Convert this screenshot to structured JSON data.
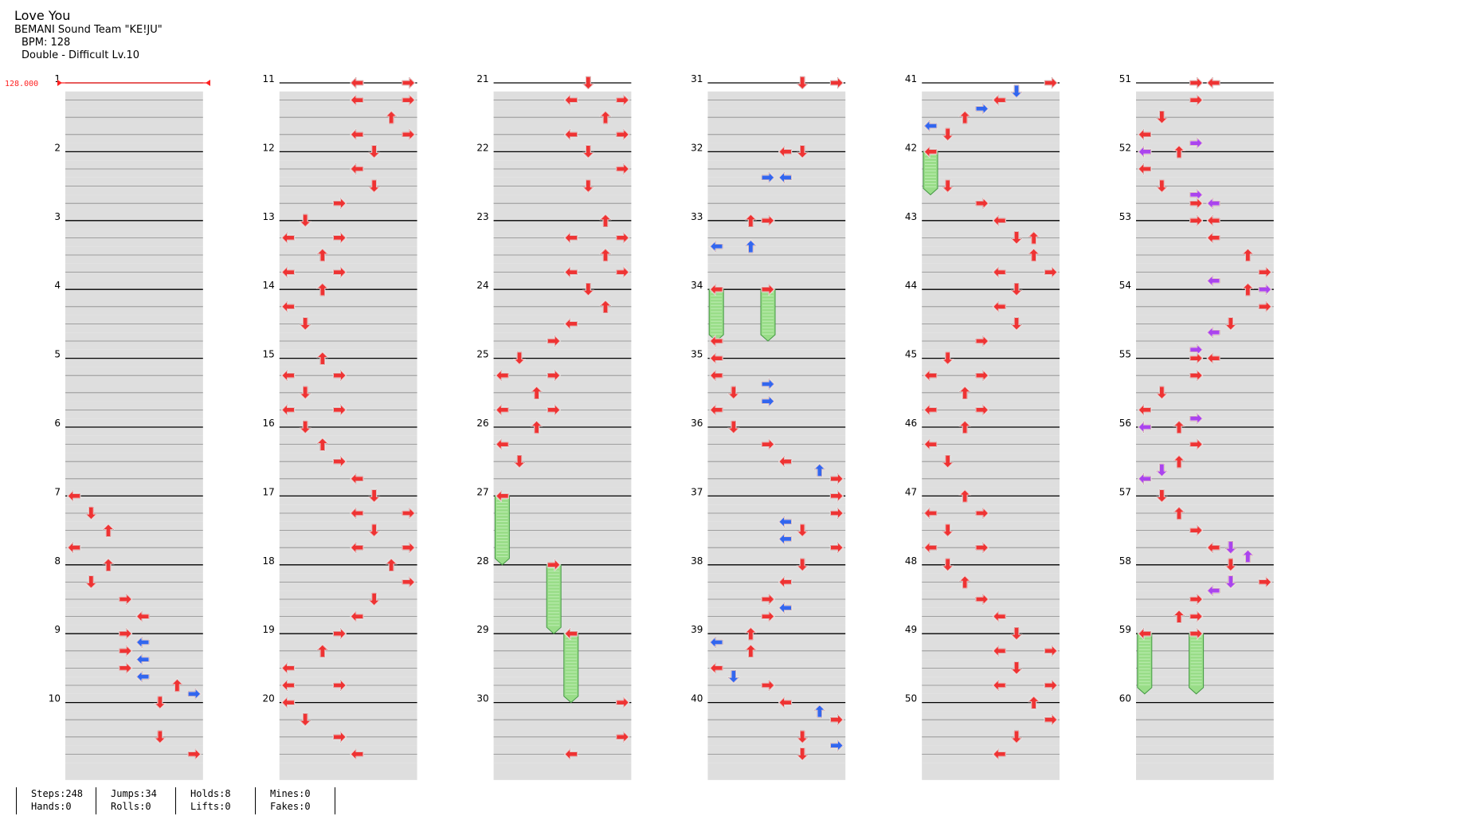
{
  "song": {
    "title": "Love You",
    "artist": "BEMANI Sound Team \"KE!JU\"",
    "bpm_label": "BPM: 128",
    "difficulty_label": "Double - Difficult  Lv.10"
  },
  "bpm_marker": "128.000",
  "measure_numbers": [
    "1",
    "2",
    "3",
    "4",
    "5",
    "6",
    "7",
    "8",
    "9",
    "10",
    "11",
    "12",
    "13",
    "14",
    "15",
    "16",
    "17",
    "18",
    "19",
    "20",
    "21",
    "22",
    "23",
    "24",
    "25",
    "26",
    "27",
    "28",
    "29",
    "30",
    "31",
    "32",
    "33",
    "34",
    "35",
    "36",
    "37",
    "38",
    "39",
    "40",
    "41",
    "42",
    "43",
    "44",
    "45",
    "46",
    "47",
    "48",
    "49",
    "50",
    "51",
    "52",
    "53",
    "54",
    "55",
    "56",
    "57",
    "58",
    "59",
    "60"
  ],
  "colors": {
    "quarter": "#ee3333",
    "eighth": "#3366ee",
    "sixteenth": "#aa44ee",
    "hold_fill": "#99dd88",
    "band": "#dedede",
    "bpm_line": "#ff2222"
  },
  "notes": [
    {
      "m": 7,
      "b": 0,
      "l": 0,
      "c": "r"
    },
    {
      "m": 7,
      "b": 1,
      "l": 1,
      "c": "r"
    },
    {
      "m": 7,
      "b": 2,
      "l": 2,
      "c": "r"
    },
    {
      "m": 7,
      "b": 3,
      "l": 0,
      "c": "r"
    },
    {
      "m": 8,
      "b": 0,
      "l": 2,
      "c": "r"
    },
    {
      "m": 8,
      "b": 1,
      "l": 1,
      "c": "r"
    },
    {
      "m": 8,
      "b": 2,
      "l": 3,
      "c": "r"
    },
    {
      "m": 8,
      "b": 3,
      "l": 4,
      "c": "r"
    },
    {
      "m": 9,
      "b": 0,
      "l": 3,
      "c": "r"
    },
    {
      "m": 9,
      "b": 0.5,
      "l": 4,
      "c": "b"
    },
    {
      "m": 9,
      "b": 1,
      "l": 3,
      "c": "r"
    },
    {
      "m": 9,
      "b": 1.5,
      "l": 4,
      "c": "b"
    },
    {
      "m": 9,
      "b": 2,
      "l": 3,
      "c": "r"
    },
    {
      "m": 9,
      "b": 2.5,
      "l": 4,
      "c": "b"
    },
    {
      "m": 9,
      "b": 3,
      "l": 6,
      "c": "r"
    },
    {
      "m": 9,
      "b": 3.5,
      "l": 7,
      "c": "b"
    },
    {
      "m": 10,
      "b": 0,
      "l": 5,
      "c": "r"
    },
    {
      "m": 10,
      "b": 2,
      "l": 5,
      "c": "r"
    },
    {
      "m": 10,
      "b": 3,
      "l": 7,
      "c": "r"
    },
    {
      "m": 11,
      "b": 0,
      "l": 4,
      "c": "r"
    },
    {
      "m": 11,
      "b": 0,
      "l": 7,
      "c": "r"
    },
    {
      "m": 11,
      "b": 1,
      "l": 4,
      "c": "r"
    },
    {
      "m": 11,
      "b": 1,
      "l": 7,
      "c": "r"
    },
    {
      "m": 11,
      "b": 2,
      "l": 6,
      "c": "r"
    },
    {
      "m": 11,
      "b": 3,
      "l": 4,
      "c": "r"
    },
    {
      "m": 11,
      "b": 3,
      "l": 7,
      "c": "r"
    },
    {
      "m": 12,
      "b": 0,
      "l": 5,
      "c": "r"
    },
    {
      "m": 12,
      "b": 1,
      "l": 4,
      "c": "r"
    },
    {
      "m": 12,
      "b": 2,
      "l": 5,
      "c": "r"
    },
    {
      "m": 12,
      "b": 3,
      "l": 3,
      "c": "r"
    },
    {
      "m": 13,
      "b": 0,
      "l": 1,
      "c": "r"
    },
    {
      "m": 13,
      "b": 1,
      "l": 0,
      "c": "r"
    },
    {
      "m": 13,
      "b": 1,
      "l": 3,
      "c": "r"
    },
    {
      "m": 13,
      "b": 2,
      "l": 2,
      "c": "r"
    },
    {
      "m": 13,
      "b": 3,
      "l": 0,
      "c": "r"
    },
    {
      "m": 13,
      "b": 3,
      "l": 3,
      "c": "r"
    },
    {
      "m": 14,
      "b": 0,
      "l": 2,
      "c": "r"
    },
    {
      "m": 14,
      "b": 1,
      "l": 0,
      "c": "r"
    },
    {
      "m": 14,
      "b": 2,
      "l": 1,
      "c": "r"
    },
    {
      "m": 15,
      "b": 0,
      "l": 2,
      "c": "r"
    },
    {
      "m": 15,
      "b": 1,
      "l": 0,
      "c": "r"
    },
    {
      "m": 15,
      "b": 1,
      "l": 3,
      "c": "r"
    },
    {
      "m": 15,
      "b": 2,
      "l": 1,
      "c": "r"
    },
    {
      "m": 15,
      "b": 3,
      "l": 0,
      "c": "r"
    },
    {
      "m": 15,
      "b": 3,
      "l": 3,
      "c": "r"
    },
    {
      "m": 16,
      "b": 0,
      "l": 1,
      "c": "r"
    },
    {
      "m": 16,
      "b": 1,
      "l": 2,
      "c": "r"
    },
    {
      "m": 16,
      "b": 2,
      "l": 3,
      "c": "r"
    },
    {
      "m": 16,
      "b": 3,
      "l": 4,
      "c": "r"
    },
    {
      "m": 17,
      "b": 0,
      "l": 5,
      "c": "r"
    },
    {
      "m": 17,
      "b": 1,
      "l": 4,
      "c": "r"
    },
    {
      "m": 17,
      "b": 1,
      "l": 7,
      "c": "r"
    },
    {
      "m": 17,
      "b": 2,
      "l": 5,
      "c": "r"
    },
    {
      "m": 17,
      "b": 3,
      "l": 4,
      "c": "r"
    },
    {
      "m": 17,
      "b": 3,
      "l": 7,
      "c": "r"
    },
    {
      "m": 18,
      "b": 0,
      "l": 6,
      "c": "r"
    },
    {
      "m": 18,
      "b": 1,
      "l": 7,
      "c": "r"
    },
    {
      "m": 18,
      "b": 2,
      "l": 5,
      "c": "r"
    },
    {
      "m": 18,
      "b": 3,
      "l": 4,
      "c": "r"
    },
    {
      "m": 19,
      "b": 0,
      "l": 3,
      "c": "r"
    },
    {
      "m": 19,
      "b": 1,
      "l": 2,
      "c": "r"
    },
    {
      "m": 19,
      "b": 2,
      "l": 0,
      "c": "r"
    },
    {
      "m": 19,
      "b": 3,
      "l": 0,
      "c": "r"
    },
    {
      "m": 19,
      "b": 3,
      "l": 3,
      "c": "r"
    },
    {
      "m": 20,
      "b": 0,
      "l": 0,
      "c": "r"
    },
    {
      "m": 20,
      "b": 1,
      "l": 1,
      "c": "r"
    },
    {
      "m": 20,
      "b": 2,
      "l": 3,
      "c": "r"
    },
    {
      "m": 20,
      "b": 3,
      "l": 4,
      "c": "r"
    },
    {
      "m": 21,
      "b": 0,
      "l": 5,
      "c": "r"
    },
    {
      "m": 21,
      "b": 1,
      "l": 4,
      "c": "r"
    },
    {
      "m": 21,
      "b": 1,
      "l": 7,
      "c": "r"
    },
    {
      "m": 21,
      "b": 2,
      "l": 6,
      "c": "r"
    },
    {
      "m": 21,
      "b": 3,
      "l": 4,
      "c": "r"
    },
    {
      "m": 21,
      "b": 3,
      "l": 7,
      "c": "r"
    },
    {
      "m": 22,
      "b": 0,
      "l": 5,
      "c": "r"
    },
    {
      "m": 22,
      "b": 1,
      "l": 7,
      "c": "r"
    },
    {
      "m": 22,
      "b": 2,
      "l": 5,
      "c": "r"
    },
    {
      "m": 23,
      "b": 0,
      "l": 6,
      "c": "r"
    },
    {
      "m": 23,
      "b": 1,
      "l": 4,
      "c": "r"
    },
    {
      "m": 23,
      "b": 1,
      "l": 7,
      "c": "r"
    },
    {
      "m": 23,
      "b": 2,
      "l": 6,
      "c": "r"
    },
    {
      "m": 23,
      "b": 3,
      "l": 4,
      "c": "r"
    },
    {
      "m": 23,
      "b": 3,
      "l": 7,
      "c": "r"
    },
    {
      "m": 24,
      "b": 0,
      "l": 5,
      "c": "r"
    },
    {
      "m": 24,
      "b": 1,
      "l": 6,
      "c": "r"
    },
    {
      "m": 24,
      "b": 2,
      "l": 4,
      "c": "r"
    },
    {
      "m": 24,
      "b": 3,
      "l": 3,
      "c": "r"
    },
    {
      "m": 25,
      "b": 0,
      "l": 1,
      "c": "r"
    },
    {
      "m": 25,
      "b": 1,
      "l": 0,
      "c": "r"
    },
    {
      "m": 25,
      "b": 1,
      "l": 3,
      "c": "r"
    },
    {
      "m": 25,
      "b": 2,
      "l": 2,
      "c": "r"
    },
    {
      "m": 25,
      "b": 3,
      "l": 0,
      "c": "r"
    },
    {
      "m": 25,
      "b": 3,
      "l": 3,
      "c": "r"
    },
    {
      "m": 26,
      "b": 0,
      "l": 2,
      "c": "r"
    },
    {
      "m": 26,
      "b": 1,
      "l": 0,
      "c": "r"
    },
    {
      "m": 26,
      "b": 2,
      "l": 1,
      "c": "r"
    },
    {
      "m": 28,
      "b": 0,
      "l": 3,
      "c": "r"
    },
    {
      "m": 29,
      "b": 0,
      "l": 4,
      "c": "r"
    },
    {
      "m": 30,
      "b": 0,
      "l": 7,
      "c": "r"
    },
    {
      "m": 30,
      "b": 2,
      "l": 7,
      "c": "r"
    },
    {
      "m": 30,
      "b": 3,
      "l": 4,
      "c": "r"
    },
    {
      "m": 31,
      "b": 0,
      "l": 5,
      "c": "r"
    },
    {
      "m": 31,
      "b": 0,
      "l": 7,
      "c": "r"
    },
    {
      "m": 32,
      "b": 0,
      "l": 4,
      "c": "r"
    },
    {
      "m": 32,
      "b": 0,
      "l": 5,
      "c": "r"
    },
    {
      "m": 32,
      "b": 1.5,
      "l": 3,
      "c": "b"
    },
    {
      "m": 32,
      "b": 1.5,
      "l": 4,
      "c": "b"
    },
    {
      "m": 33,
      "b": 0,
      "l": 2,
      "c": "r"
    },
    {
      "m": 33,
      "b": 0,
      "l": 3,
      "c": "r"
    },
    {
      "m": 33,
      "b": 1.5,
      "l": 0,
      "c": "b"
    },
    {
      "m": 33,
      "b": 1.5,
      "l": 2,
      "c": "b"
    },
    {
      "m": 34,
      "b": 3,
      "l": 0,
      "c": "r"
    },
    {
      "m": 35,
      "b": 0,
      "l": 0,
      "c": "r"
    },
    {
      "m": 35,
      "b": 1,
      "l": 0,
      "c": "r"
    },
    {
      "m": 35,
      "b": 1.5,
      "l": 3,
      "c": "b"
    },
    {
      "m": 35,
      "b": 2,
      "l": 1,
      "c": "r"
    },
    {
      "m": 35,
      "b": 2.5,
      "l": 3,
      "c": "b"
    },
    {
      "m": 35,
      "b": 3,
      "l": 0,
      "c": "r"
    },
    {
      "m": 36,
      "b": 0,
      "l": 1,
      "c": "r"
    },
    {
      "m": 36,
      "b": 1,
      "l": 3,
      "c": "r"
    },
    {
      "m": 36,
      "b": 2,
      "l": 4,
      "c": "r"
    },
    {
      "m": 36,
      "b": 2.5,
      "l": 6,
      "c": "b"
    },
    {
      "m": 36,
      "b": 3,
      "l": 7,
      "c": "r"
    },
    {
      "m": 37,
      "b": 0,
      "l": 7,
      "c": "r"
    },
    {
      "m": 37,
      "b": 1,
      "l": 7,
      "c": "r"
    },
    {
      "m": 37,
      "b": 1.5,
      "l": 4,
      "c": "b"
    },
    {
      "m": 37,
      "b": 2,
      "l": 5,
      "c": "r"
    },
    {
      "m": 37,
      "b": 2.5,
      "l": 4,
      "c": "b"
    },
    {
      "m": 37,
      "b": 3,
      "l": 7,
      "c": "r"
    },
    {
      "m": 38,
      "b": 0,
      "l": 5,
      "c": "r"
    },
    {
      "m": 38,
      "b": 1,
      "l": 4,
      "c": "r"
    },
    {
      "m": 38,
      "b": 2,
      "l": 3,
      "c": "r"
    },
    {
      "m": 38,
      "b": 2.5,
      "l": 4,
      "c": "b"
    },
    {
      "m": 38,
      "b": 3,
      "l": 3,
      "c": "r"
    },
    {
      "m": 39,
      "b": 0,
      "l": 2,
      "c": "r"
    },
    {
      "m": 39,
      "b": 0.5,
      "l": 0,
      "c": "b"
    },
    {
      "m": 39,
      "b": 1,
      "l": 2,
      "c": "r"
    },
    {
      "m": 39,
      "b": 2,
      "l": 0,
      "c": "r"
    },
    {
      "m": 39,
      "b": 2.5,
      "l": 1,
      "c": "b"
    },
    {
      "m": 39,
      "b": 3,
      "l": 3,
      "c": "r"
    },
    {
      "m": 40,
      "b": 0,
      "l": 4,
      "c": "r"
    },
    {
      "m": 40,
      "b": 0.5,
      "l": 6,
      "c": "b"
    },
    {
      "m": 40,
      "b": 1,
      "l": 7,
      "c": "r"
    },
    {
      "m": 40,
      "b": 2,
      "l": 5,
      "c": "r"
    },
    {
      "m": 40,
      "b": 2.5,
      "l": 7,
      "c": "b"
    },
    {
      "m": 40,
      "b": 3,
      "l": 5,
      "c": "r"
    },
    {
      "m": 41,
      "b": 0,
      "l": 7,
      "c": "r"
    },
    {
      "m": 41,
      "b": 0.5,
      "l": 5,
      "c": "b"
    },
    {
      "m": 41,
      "b": 1,
      "l": 4,
      "c": "r"
    },
    {
      "m": 41,
      "b": 1.5,
      "l": 3,
      "c": "b"
    },
    {
      "m": 41,
      "b": 2,
      "l": 2,
      "c": "r"
    },
    {
      "m": 41,
      "b": 2.5,
      "l": 0,
      "c": "b"
    },
    {
      "m": 41,
      "b": 3,
      "l": 1,
      "c": "r"
    },
    {
      "m": 42,
      "b": 2,
      "l": 1,
      "c": "r"
    },
    {
      "m": 42,
      "b": 3,
      "l": 3,
      "c": "r"
    },
    {
      "m": 43,
      "b": 0,
      "l": 4,
      "c": "r"
    },
    {
      "m": 43,
      "b": 1,
      "l": 5,
      "c": "r"
    },
    {
      "m": 43,
      "b": 1,
      "l": 6,
      "c": "r"
    },
    {
      "m": 43,
      "b": 2,
      "l": 6,
      "c": "r"
    },
    {
      "m": 43,
      "b": 3,
      "l": 4,
      "c": "r"
    },
    {
      "m": 43,
      "b": 3,
      "l": 7,
      "c": "r"
    },
    {
      "m": 44,
      "b": 0,
      "l": 5,
      "c": "r"
    },
    {
      "m": 44,
      "b": 1,
      "l": 4,
      "c": "r"
    },
    {
      "m": 44,
      "b": 2,
      "l": 5,
      "c": "r"
    },
    {
      "m": 44,
      "b": 3,
      "l": 3,
      "c": "r"
    },
    {
      "m": 45,
      "b": 0,
      "l": 1,
      "c": "r"
    },
    {
      "m": 45,
      "b": 1,
      "l": 0,
      "c": "r"
    },
    {
      "m": 45,
      "b": 1,
      "l": 3,
      "c": "r"
    },
    {
      "m": 45,
      "b": 2,
      "l": 2,
      "c": "r"
    },
    {
      "m": 45,
      "b": 3,
      "l": 0,
      "c": "r"
    },
    {
      "m": 45,
      "b": 3,
      "l": 3,
      "c": "r"
    },
    {
      "m": 46,
      "b": 0,
      "l": 2,
      "c": "r"
    },
    {
      "m": 46,
      "b": 1,
      "l": 0,
      "c": "r"
    },
    {
      "m": 46,
      "b": 2,
      "l": 1,
      "c": "r"
    },
    {
      "m": 47,
      "b": 0,
      "l": 2,
      "c": "r"
    },
    {
      "m": 47,
      "b": 1,
      "l": 0,
      "c": "r"
    },
    {
      "m": 47,
      "b": 1,
      "l": 3,
      "c": "r"
    },
    {
      "m": 47,
      "b": 2,
      "l": 1,
      "c": "r"
    },
    {
      "m": 47,
      "b": 3,
      "l": 0,
      "c": "r"
    },
    {
      "m": 47,
      "b": 3,
      "l": 3,
      "c": "r"
    },
    {
      "m": 48,
      "b": 0,
      "l": 1,
      "c": "r"
    },
    {
      "m": 48,
      "b": 1,
      "l": 2,
      "c": "r"
    },
    {
      "m": 48,
      "b": 2,
      "l": 3,
      "c": "r"
    },
    {
      "m": 48,
      "b": 3,
      "l": 4,
      "c": "r"
    },
    {
      "m": 49,
      "b": 0,
      "l": 5,
      "c": "r"
    },
    {
      "m": 49,
      "b": 1,
      "l": 4,
      "c": "r"
    },
    {
      "m": 49,
      "b": 1,
      "l": 7,
      "c": "r"
    },
    {
      "m": 49,
      "b": 2,
      "l": 5,
      "c": "r"
    },
    {
      "m": 49,
      "b": 3,
      "l": 4,
      "c": "r"
    },
    {
      "m": 49,
      "b": 3,
      "l": 7,
      "c": "r"
    },
    {
      "m": 50,
      "b": 0,
      "l": 6,
      "c": "r"
    },
    {
      "m": 50,
      "b": 1,
      "l": 7,
      "c": "r"
    },
    {
      "m": 50,
      "b": 2,
      "l": 5,
      "c": "r"
    },
    {
      "m": 50,
      "b": 3,
      "l": 4,
      "c": "r"
    },
    {
      "m": 51,
      "b": 0,
      "l": 3,
      "c": "r"
    },
    {
      "m": 51,
      "b": 0,
      "l": 4,
      "c": "r"
    },
    {
      "m": 51,
      "b": 1,
      "l": 3,
      "c": "r"
    },
    {
      "m": 51,
      "b": 2,
      "l": 1,
      "c": "r"
    },
    {
      "m": 51,
      "b": 3,
      "l": 0,
      "c": "r"
    },
    {
      "m": 52,
      "b": 0,
      "l": 0,
      "c": "p"
    },
    {
      "m": 52,
      "b": 0,
      "l": 2,
      "c": "r"
    },
    {
      "m": 52,
      "b": -0.5,
      "l": 3,
      "c": "p"
    },
    {
      "m": 52,
      "b": 1,
      "l": 0,
      "c": "r"
    },
    {
      "m": 52,
      "b": 2,
      "l": 1,
      "c": "r"
    },
    {
      "m": 52,
      "b": 2.5,
      "l": 3,
      "c": "p"
    },
    {
      "m": 52,
      "b": 3,
      "l": 3,
      "c": "r"
    },
    {
      "m": 52,
      "b": 3,
      "l": 4,
      "c": "p"
    },
    {
      "m": 53,
      "b": 0,
      "l": 3,
      "c": "r"
    },
    {
      "m": 53,
      "b": 0,
      "l": 4,
      "c": "r"
    },
    {
      "m": 53,
      "b": 1,
      "l": 4,
      "c": "r"
    },
    {
      "m": 53,
      "b": 2,
      "l": 6,
      "c": "r"
    },
    {
      "m": 53,
      "b": 3,
      "l": 7,
      "c": "r"
    },
    {
      "m": 54,
      "b": -0.5,
      "l": 4,
      "c": "p"
    },
    {
      "m": 54,
      "b": 0,
      "l": 6,
      "c": "r"
    },
    {
      "m": 54,
      "b": 0,
      "l": 7,
      "c": "p"
    },
    {
      "m": 54,
      "b": 1,
      "l": 7,
      "c": "r"
    },
    {
      "m": 54,
      "b": 2,
      "l": 5,
      "c": "r"
    },
    {
      "m": 54,
      "b": 2.5,
      "l": 4,
      "c": "p"
    },
    {
      "m": 55,
      "b": -0.5,
      "l": 3,
      "c": "p"
    },
    {
      "m": 55,
      "b": 0,
      "l": 3,
      "c": "r"
    },
    {
      "m": 55,
      "b": 0,
      "l": 4,
      "c": "r"
    },
    {
      "m": 55,
      "b": 1,
      "l": 3,
      "c": "r"
    },
    {
      "m": 55,
      "b": 2,
      "l": 1,
      "c": "r"
    },
    {
      "m": 55,
      "b": 3,
      "l": 0,
      "c": "r"
    },
    {
      "m": 56,
      "b": 0,
      "l": 0,
      "c": "p"
    },
    {
      "m": 56,
      "b": 0,
      "l": 2,
      "c": "r"
    },
    {
      "m": 56,
      "b": -0.5,
      "l": 3,
      "c": "p"
    },
    {
      "m": 56,
      "b": 1,
      "l": 3,
      "c": "r"
    },
    {
      "m": 56,
      "b": 2,
      "l": 2,
      "c": "r"
    },
    {
      "m": 56,
      "b": 2.5,
      "l": 1,
      "c": "p"
    },
    {
      "m": 56,
      "b": 3,
      "l": 0,
      "c": "p"
    },
    {
      "m": 57,
      "b": 0,
      "l": 1,
      "c": "r"
    },
    {
      "m": 57,
      "b": 1,
      "l": 2,
      "c": "r"
    },
    {
      "m": 57,
      "b": 2,
      "l": 3,
      "c": "r"
    },
    {
      "m": 57,
      "b": 3,
      "l": 4,
      "c": "r"
    },
    {
      "m": 57,
      "b": 3,
      "l": 5,
      "c": "p"
    },
    {
      "m": 58,
      "b": -0.5,
      "l": 6,
      "c": "p"
    },
    {
      "m": 58,
      "b": 0,
      "l": 5,
      "c": "r"
    },
    {
      "m": 58,
      "b": 1,
      "l": 7,
      "c": "r"
    },
    {
      "m": 58,
      "b": 1,
      "l": 5,
      "c": "p"
    },
    {
      "m": 58,
      "b": 1.5,
      "l": 4,
      "c": "p"
    },
    {
      "m": 58,
      "b": 2,
      "l": 3,
      "c": "r"
    },
    {
      "m": 58,
      "b": 3,
      "l": 2,
      "c": "r"
    },
    {
      "m": 58,
      "b": 3,
      "l": 3,
      "c": "r"
    }
  ],
  "holds": [
    {
      "m": 27,
      "b": 0,
      "end_m": 28,
      "end_b": 0,
      "l": 0
    },
    {
      "m": 28,
      "b": 0,
      "end_m": 29,
      "end_b": 0,
      "l": 3
    },
    {
      "m": 29,
      "b": 0,
      "end_m": 30,
      "end_b": 0,
      "l": 4
    },
    {
      "m": 34,
      "b": 0,
      "end_m": 34,
      "end_b": 3,
      "l": 0
    },
    {
      "m": 34,
      "b": 0,
      "end_m": 34,
      "end_b": 3,
      "l": 3
    },
    {
      "m": 42,
      "b": 0,
      "end_m": 42,
      "end_b": 2.5,
      "l": 0
    },
    {
      "m": 59,
      "b": 0,
      "end_m": 59,
      "end_b": 3.5,
      "l": 0
    },
    {
      "m": 59,
      "b": 0,
      "end_m": 59,
      "end_b": 3.5,
      "l": 3
    }
  ],
  "stats": {
    "steps": "Steps:248",
    "hands": "Hands:0",
    "jumps": "Jumps:34",
    "rolls": "Rolls:0",
    "holds": "Holds:8",
    "lifts": "Lifts:0",
    "mines": "Mines:0",
    "fakes": "Fakes:0"
  }
}
